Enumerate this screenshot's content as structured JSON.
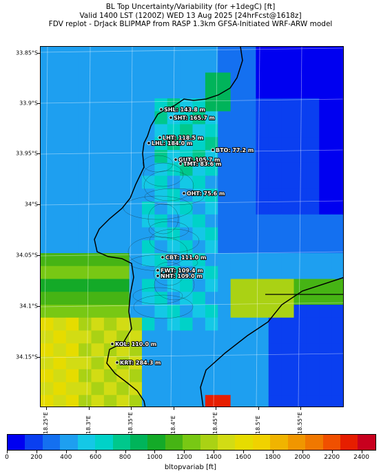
{
  "titles": {
    "line1": "BL Top Uncertainty/Variability (for +1degC) [ft]",
    "line2": "Valid 1400 LST (1200Z) WED 13 Aug 2025 [24hrFcst@1618z]",
    "line3": "FDV replot - DrJack BLIPMAP from RASP 1.3km GFSA-Initiated WRF-ARW model"
  },
  "map": {
    "lat_labels": [
      "33.85°S",
      "33.9°S",
      "33.95°S",
      "34°S",
      "34.05°S",
      "34.1°S",
      "34.15°S"
    ],
    "lon_labels": [
      "18.25°E",
      "18.3°E",
      "18.35°E",
      "18.4°E",
      "18.45°E",
      "18.5°E",
      "18.55°E"
    ],
    "stations": [
      {
        "code": "SHL",
        "label": "SHL: 143.8 m"
      },
      {
        "code": "SHT",
        "label": "SHT: 165.7 m"
      },
      {
        "code": "LHT",
        "label": "LHT: 118.5 m"
      },
      {
        "code": "LHL",
        "label": "LHL: 184.0 m"
      },
      {
        "code": "BTO",
        "label": "BTO: 77.2 m"
      },
      {
        "code": "GUT",
        "label": "GUT: 105.7 m"
      },
      {
        "code": "TMT",
        "label": "TMT: 83.6 m"
      },
      {
        "code": "OHT",
        "label": "OHT: 75.6 m"
      },
      {
        "code": "CBT",
        "label": "CBT: 111.0 m"
      },
      {
        "code": "FWT",
        "label": "FWT: 109.4 m"
      },
      {
        "code": "NHT",
        "label": "NHT: 109.0 m"
      },
      {
        "code": "KOL",
        "label": "KOL: 110.0 m"
      },
      {
        "code": "KRT",
        "label": "KRT: 284.3 m"
      }
    ]
  },
  "colorbar": {
    "label": "bltopvariab [ft]",
    "ticks": [
      "0",
      "200",
      "400",
      "600",
      "800",
      "1000",
      "1200",
      "1400",
      "1600",
      "1800",
      "2000",
      "2200",
      "2400"
    ],
    "colors": [
      "#0000f0",
      "#0a3ff0",
      "#1470f0",
      "#1e9ff0",
      "#14c8e6",
      "#00d2c8",
      "#00c88c",
      "#00b45a",
      "#14aa28",
      "#46b414",
      "#78c814",
      "#aad214",
      "#d2dc14",
      "#e6dc00",
      "#f0d200",
      "#f0b400",
      "#f09600",
      "#f07800",
      "#f05000",
      "#e61e00",
      "#c8001e"
    ]
  },
  "chart_data": {
    "type": "heatmap",
    "title": "BL Top Uncertainty/Variability (for +1degC) [ft]",
    "variable": "bltopvariab [ft]",
    "lon_ticks": [
      "18.25°E",
      "18.3°E",
      "18.35°E",
      "18.4°E",
      "18.45°E",
      "18.5°E",
      "18.55°E"
    ],
    "lat_ticks": [
      "33.85°S",
      "33.9°S",
      "33.95°S",
      "34°S",
      "34.05°S",
      "34.1°S",
      "34.15°S"
    ],
    "colorbar_range": [
      0,
      2500
    ],
    "station_elevations_m": {
      "SHL": 143.8,
      "SHT": 165.7,
      "LHT": 118.5,
      "LHL": 184.0,
      "BTO": 77.2,
      "GUT": 105.7,
      "TMT": 83.6,
      "OHT": 75.6,
      "CBT": 111.0,
      "FWT": 109.4,
      "NHT": 109.0,
      "KOL": 110.0,
      "KRT": 284.3
    }
  }
}
